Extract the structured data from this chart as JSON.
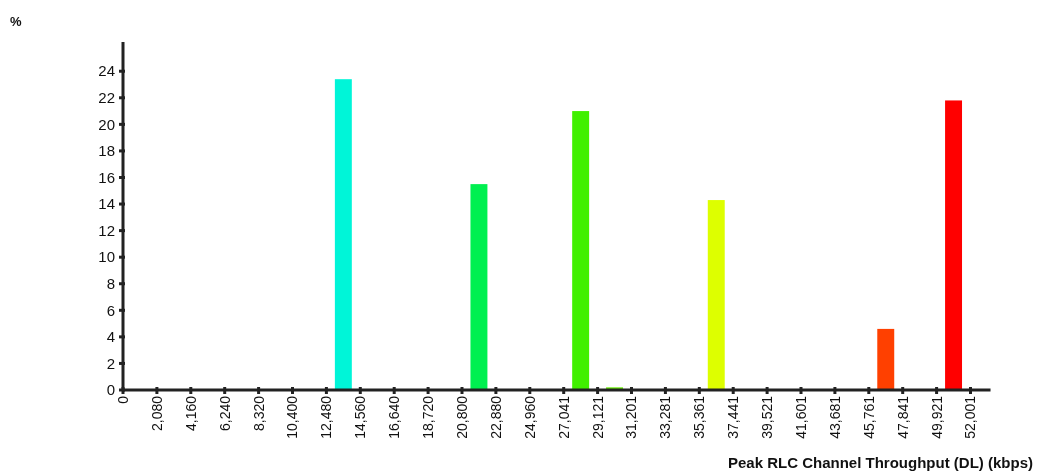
{
  "chart_data": {
    "type": "histogram",
    "annotations": [
      "%"
    ],
    "xlabel": "Peak RLC Channel Throughput (DL) (kbps)",
    "bins": [
      0,
      2080,
      4160,
      6240,
      8320,
      10400,
      12480,
      14560,
      16640,
      18720,
      20800,
      22880,
      24960,
      27041,
      29121,
      31201,
      33281,
      35361,
      37441,
      39521,
      41601,
      43681,
      45761,
      47841,
      49921,
      52001
    ],
    "values": [
      0,
      0,
      0,
      0,
      0,
      0,
      23.4,
      0,
      0,
      0,
      15.5,
      0,
      0,
      21,
      0.2,
      0,
      0,
      14.3,
      0,
      0,
      0,
      0,
      4.6,
      0,
      21.8
    ],
    "colors": [
      "#00f5d8",
      "#00f5d8",
      "#00f5d8",
      "#00f5d8",
      "#00f5d8",
      "#00f5d8",
      "#00f5d8",
      "#00f0a0",
      "#00f070",
      "#00f060",
      "#00f050",
      "#20f030",
      "#30f010",
      "#40f000",
      "#66ee00",
      "#88f000",
      "#aaf000",
      "#ddff00",
      "#ffd000",
      "#ffa000",
      "#ff8000",
      "#ff6000",
      "#ff4000",
      "#ff2000",
      "#ff0000"
    ],
    "xlim": [
      0,
      53230
    ],
    "xticks": [
      0,
      {
        "value": 2080,
        "label": "2,080"
      },
      {
        "value": 4160,
        "label": "4,160"
      },
      {
        "value": 6240,
        "label": "6,240"
      },
      {
        "value": 8320,
        "label": "8,320"
      },
      {
        "value": 10400,
        "label": "10,400"
      },
      {
        "value": 12480,
        "label": "12,480"
      },
      {
        "value": 14560,
        "label": "14,560"
      },
      {
        "value": 16640,
        "label": "16,640"
      },
      {
        "value": 18720,
        "label": "18,720"
      },
      {
        "value": 20800,
        "label": "20,800"
      },
      {
        "value": 22880,
        "label": "22,880"
      },
      {
        "value": 24960,
        "label": "24,960"
      },
      {
        "value": 27041,
        "label": "27,041"
      },
      {
        "value": 29121,
        "label": "29,121"
      },
      {
        "value": 31201,
        "label": "31,201"
      },
      {
        "value": 33281,
        "label": "33,281"
      },
      {
        "value": 35361,
        "label": "35,361"
      },
      {
        "value": 37441,
        "label": "37,441"
      },
      {
        "value": 39521,
        "label": "39,521"
      },
      {
        "value": 41601,
        "label": "41,601"
      },
      {
        "value": 43681,
        "label": "43,681"
      },
      {
        "value": 45761,
        "label": "45,761"
      },
      {
        "value": 47841,
        "label": "47,841"
      },
      {
        "value": 49921,
        "label": "49,921"
      },
      {
        "value": 52001,
        "label": "52,001"
      }
    ],
    "ylim": [
      0,
      26.2
    ],
    "yticks": [
      0,
      2,
      4,
      6,
      8,
      10,
      12,
      14,
      16,
      18,
      20,
      22,
      24
    ]
  }
}
